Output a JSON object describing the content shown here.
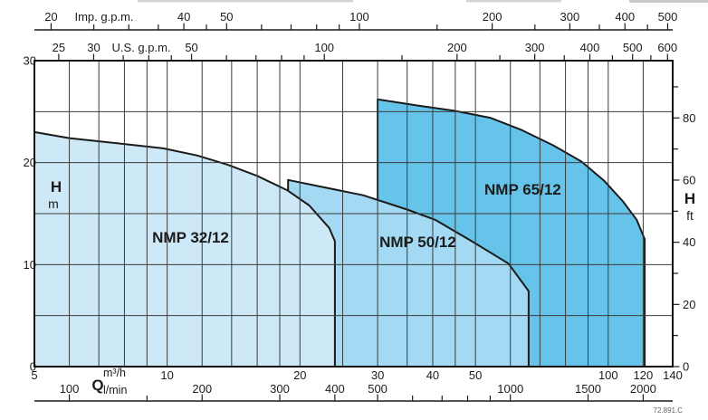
{
  "doc_number": "72.891.C",
  "colors": {
    "line": "#1a1a1a",
    "grid": "#3c3c3c",
    "frame": "#111111",
    "text": "#1c1c1c",
    "region_light": "#cde8f7",
    "region_mid": "#a3d9f2",
    "region_dark": "#66c4ea"
  },
  "chart_data": {
    "type": "area",
    "title": "Pump performance range chart (head H vs flow Q, log x-scale)",
    "grid": true,
    "x_axis": {
      "label_q": "Q",
      "unit_top": "m³/h",
      "unit_bottom": "l/min",
      "scale": "log",
      "q_range_m3h": [
        5,
        140
      ]
    },
    "y_axis": {
      "label": "H",
      "unit_left": "m",
      "unit_right": "ft",
      "range_m": [
        0,
        30
      ]
    },
    "axes": {
      "imp_gpm": {
        "title": "Imp. g.p.m.",
        "per_m3h": 3.666,
        "labeled_ticks": [
          20,
          40,
          50,
          100,
          200,
          300,
          400,
          500
        ],
        "minor_ticks": [
          25,
          30,
          35,
          45,
          60,
          70,
          80,
          90,
          150,
          250,
          350,
          450
        ]
      },
      "us_gpm": {
        "title": "U.S. g.p.m.",
        "per_m3h": 4.403,
        "labeled_ticks": [
          25,
          30,
          50,
          100,
          200,
          300,
          400,
          500,
          600
        ],
        "minor_ticks": [
          35,
          40,
          45,
          60,
          70,
          80,
          90,
          150,
          250,
          350,
          450,
          550
        ]
      },
      "m3h": {
        "labeled_ticks": [
          5,
          10,
          20,
          30,
          40,
          50,
          100,
          120,
          140
        ],
        "gridlines": [
          6,
          7,
          8,
          9,
          10,
          12,
          14,
          16,
          18,
          20,
          25,
          30,
          35,
          40,
          45,
          50,
          60,
          70,
          80,
          90,
          100,
          120
        ]
      },
      "lmin": {
        "per_m3h": 16.667,
        "labeled_ticks": [
          100,
          200,
          300,
          400,
          500,
          1000,
          1500,
          2000
        ],
        "minor_ticks": [
          150,
          600,
          700,
          800,
          900
        ]
      },
      "h_m": {
        "labeled_ticks": [
          0,
          10,
          20,
          30
        ],
        "gridlines": [
          5,
          10,
          15,
          20,
          25
        ]
      },
      "h_ft": {
        "per_m": 3.281,
        "labeled_ticks": [
          0,
          20,
          40,
          60,
          80
        ],
        "minor_ticks": [
          10,
          30,
          50,
          70,
          90
        ]
      }
    },
    "series": [
      {
        "name": "NMP 32/12",
        "fill": "#cde8f7",
        "q_min": 5,
        "q_max": 24,
        "envelope_qh": [
          [
            5,
            23.0
          ],
          [
            6,
            22.4
          ],
          [
            7.7,
            21.9
          ],
          [
            9.8,
            21.4
          ],
          [
            11.7,
            20.7
          ],
          [
            13.7,
            19.8
          ],
          [
            16,
            18.7
          ],
          [
            18.7,
            17.3
          ],
          [
            21,
            15.8
          ],
          [
            23.3,
            13.6
          ],
          [
            24,
            12.3
          ]
        ],
        "label_q": 11.3,
        "label_h": 12.7
      },
      {
        "name": "NMP 50/12",
        "fill": "#a3d9f2",
        "q_min": 18.8,
        "q_max": 66,
        "envelope_qh": [
          [
            18.8,
            18.3
          ],
          [
            22,
            17.7
          ],
          [
            27.8,
            16.8
          ],
          [
            35,
            15.4
          ],
          [
            40.5,
            14.4
          ],
          [
            49,
            12.3
          ],
          [
            59.4,
            10.1
          ],
          [
            66,
            7.4
          ]
        ],
        "label_q": 37,
        "label_h": 12.25
      },
      {
        "name": "NMP 65/12",
        "fill": "#66c4ea",
        "q_min": 30,
        "q_max": 121,
        "envelope_qh": [
          [
            30,
            26.2
          ],
          [
            37,
            25.6
          ],
          [
            44.6,
            25.1
          ],
          [
            54,
            24.4
          ],
          [
            63.6,
            23.2
          ],
          [
            75,
            21.7
          ],
          [
            87,
            20.1
          ],
          [
            98,
            18.2
          ],
          [
            108,
            16.2
          ],
          [
            116,
            14.4
          ],
          [
            121,
            12.5
          ]
        ],
        "label_q": 64,
        "label_h": 17.4
      }
    ]
  }
}
